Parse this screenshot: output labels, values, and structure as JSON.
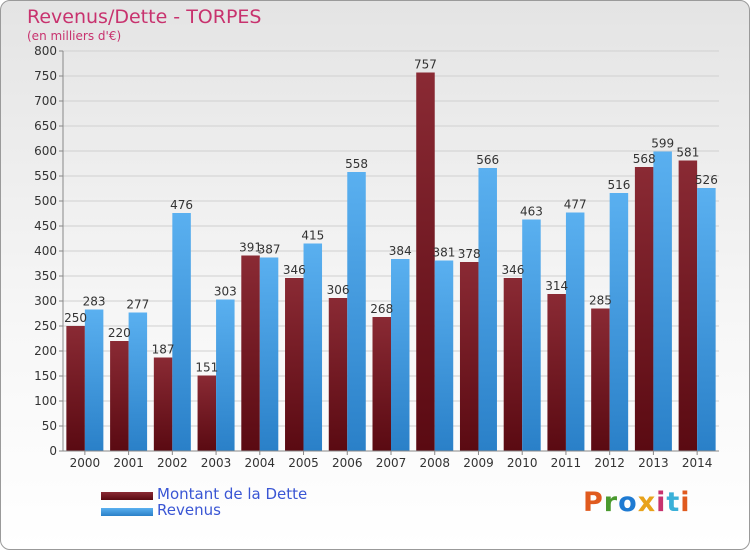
{
  "title": "Revenus/Dette - TORPES",
  "subtitle": "(en milliers d'€)",
  "logo": {
    "text": "Proxiti",
    "colors": [
      "#e05a1e",
      "#4a9a2e",
      "#1e7ad2",
      "#e8a21a",
      "#c8326e",
      "#3ab0d8",
      "#e05a1e"
    ]
  },
  "legend": [
    {
      "label": "Montant de la Dette",
      "color": "#7a1a24"
    },
    {
      "label": "Revenus",
      "color": "#4aa3e8"
    }
  ],
  "chart_data": {
    "type": "bar",
    "title": "Revenus/Dette - TORPES",
    "subtitle": "(en milliers d'€)",
    "categories": [
      "2000",
      "2001",
      "2002",
      "2003",
      "2004",
      "2005",
      "2006",
      "2007",
      "2008",
      "2009",
      "2010",
      "2011",
      "2012",
      "2013",
      "2014"
    ],
    "series": [
      {
        "name": "Montant de la Dette",
        "color": "#7a1a24",
        "values": [
          250,
          220,
          187,
          151,
          391,
          346,
          306,
          268,
          757,
          378,
          346,
          314,
          285,
          568,
          581
        ]
      },
      {
        "name": "Revenus",
        "color": "#4aa3e8",
        "values": [
          283,
          277,
          476,
          303,
          387,
          415,
          558,
          384,
          381,
          566,
          463,
          477,
          516,
          599,
          526
        ]
      }
    ],
    "ylim": [
      0,
      800
    ],
    "yticks": [
      0,
      50,
      100,
      150,
      200,
      250,
      300,
      350,
      400,
      450,
      500,
      550,
      600,
      650,
      700,
      750,
      800
    ],
    "grid": true,
    "legend_position": "bottom-left"
  }
}
